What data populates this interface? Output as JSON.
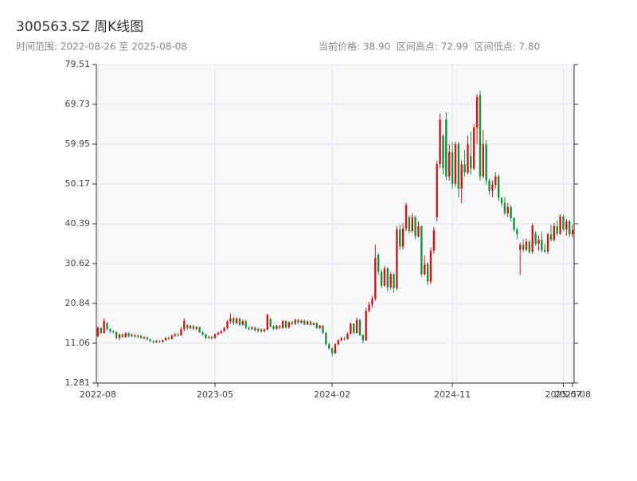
{
  "chart_data": {
    "type": "candlestick",
    "title": "300563.SZ 周K线图",
    "subtitle": "时间范围: 2022-08-26 至 2025-08-08",
    "annotation": "当前价格: 38.90  区间高点: 72.99  区间低点: 7.80",
    "up_color": "#cc1818",
    "down_color": "#1a8f3c",
    "grid": true,
    "ylim": [
      1.281,
      79.51
    ],
    "yticks": [
      1.281,
      11.06,
      20.84,
      30.62,
      40.39,
      50.17,
      59.95,
      69.73,
      79.51
    ],
    "categories": [
      "2022-08",
      null,
      null,
      null,
      null,
      null,
      null,
      null,
      null,
      null,
      null,
      null,
      null,
      null,
      null,
      null,
      null,
      null,
      null,
      null,
      null,
      null,
      null,
      null,
      null,
      null,
      null,
      null,
      null,
      null,
      null,
      null,
      null,
      null,
      null,
      null,
      null,
      null,
      "2023-05",
      null,
      null,
      null,
      null,
      null,
      null,
      null,
      null,
      null,
      null,
      null,
      null,
      null,
      null,
      null,
      null,
      null,
      null,
      null,
      null,
      null,
      null,
      null,
      null,
      null,
      null,
      null,
      null,
      null,
      null,
      null,
      null,
      null,
      null,
      null,
      null,
      null,
      "2024-02",
      null,
      null,
      null,
      null,
      null,
      null,
      null,
      null,
      null,
      null,
      null,
      null,
      null,
      null,
      null,
      null,
      null,
      null,
      null,
      null,
      null,
      null,
      null,
      null,
      null,
      null,
      null,
      null,
      null,
      null,
      null,
      null,
      null,
      null,
      null,
      null,
      null,
      null,
      "2024-11",
      null,
      null,
      null,
      null,
      null,
      null,
      null,
      null,
      null,
      null,
      null,
      null,
      null,
      null,
      null,
      null,
      null,
      null,
      null,
      null,
      null,
      null,
      null,
      null,
      null,
      null,
      null,
      null,
      null,
      null,
      null,
      null,
      null,
      null,
      null,
      "2025-07",
      null,
      null,
      "2025-08"
    ],
    "open": [
      12.8,
      14.8,
      13.6,
      16.0,
      14.5,
      14.0,
      13.8,
      12.4,
      13.2,
      12.6,
      13.5,
      12.8,
      13.1,
      12.7,
      12.9,
      12.4,
      12.5,
      12.0,
      11.6,
      11.3,
      11.6,
      11.4,
      11.8,
      12.4,
      12.1,
      12.9,
      13.2,
      13.0,
      14.5,
      15.5,
      14.8,
      15.3,
      14.6,
      15.0,
      13.8,
      13.2,
      12.4,
      12.6,
      12.3,
      13.2,
      13.6,
      14.0,
      14.8,
      16.4,
      17.2,
      16.0,
      17.1,
      15.6,
      16.5,
      14.9,
      14.6,
      14.9,
      14.2,
      14.5,
      14.0,
      14.4,
      17.0,
      15.2,
      14.6,
      15.3,
      14.8,
      16.5,
      14.9,
      16.2,
      15.8,
      16.8,
      16.1,
      16.6,
      15.7,
      16.4,
      15.6,
      16.0,
      14.8,
      15.4,
      13.6,
      10.8,
      9.8,
      8.6,
      10.8,
      11.8,
      12.3,
      12.1,
      13.4,
      15.8,
      13.6,
      16.8,
      13.0,
      11.8,
      19.0,
      20.5,
      22.0,
      32.8,
      28.6,
      25.2,
      29.4,
      24.8,
      28.0,
      24.6,
      39.0,
      34.8,
      39.2,
      42.0,
      38.6,
      42.0,
      37.4,
      39.8,
      28.0,
      30.5,
      26.2,
      33.8,
      42.0,
      55.0,
      62.0,
      66.0,
      52.0,
      58.0,
      50.2,
      60.0,
      49.0,
      55.0,
      53.0,
      57.0,
      54.0,
      64.0,
      72.0,
      52.0,
      60.0,
      51.0,
      48.5,
      50.0,
      52.0,
      46.8,
      45.5,
      43.0,
      44.5,
      41.8,
      39.0,
      34.0,
      35.2,
      34.0,
      36.0,
      33.5,
      38.0,
      35.5,
      36.5,
      34.0,
      33.6,
      37.8,
      36.4,
      39.8,
      38.0,
      42.2,
      39.0,
      41.0,
      37.8
    ],
    "close": [
      14.8,
      13.6,
      16.5,
      14.5,
      14.0,
      13.8,
      12.4,
      13.2,
      12.6,
      13.5,
      12.8,
      13.1,
      12.7,
      12.9,
      12.4,
      12.5,
      12.0,
      11.6,
      11.3,
      11.6,
      11.4,
      11.8,
      12.4,
      12.1,
      12.9,
      13.2,
      13.0,
      14.5,
      16.6,
      14.8,
      15.3,
      14.6,
      15.0,
      13.8,
      13.2,
      12.4,
      12.6,
      12.3,
      13.2,
      13.6,
      14.0,
      14.8,
      16.4,
      17.2,
      16.0,
      17.1,
      15.6,
      16.5,
      14.9,
      14.6,
      14.9,
      14.2,
      14.5,
      14.0,
      14.4,
      18.0,
      15.2,
      14.6,
      15.3,
      14.8,
      16.5,
      14.9,
      16.2,
      15.8,
      16.8,
      16.1,
      16.6,
      15.7,
      16.4,
      15.6,
      16.0,
      14.8,
      15.4,
      13.6,
      10.8,
      9.8,
      8.6,
      10.8,
      11.8,
      12.3,
      12.1,
      13.4,
      15.8,
      13.6,
      16.8,
      13.0,
      11.8,
      19.0,
      20.5,
      22.0,
      32.0,
      28.6,
      25.2,
      29.4,
      24.8,
      28.0,
      24.6,
      39.0,
      34.8,
      39.2,
      45.0,
      38.6,
      42.0,
      37.4,
      39.8,
      28.0,
      30.5,
      26.2,
      33.8,
      38.8,
      55.0,
      66.0,
      54.0,
      52.0,
      58.0,
      50.2,
      60.0,
      49.0,
      55.0,
      53.0,
      60.0,
      54.0,
      64.0,
      71.5,
      52.0,
      60.0,
      51.0,
      48.5,
      50.0,
      52.0,
      46.8,
      45.5,
      43.0,
      44.5,
      41.8,
      39.0,
      37.8,
      35.2,
      34.0,
      36.0,
      33.5,
      40.0,
      35.5,
      36.5,
      34.0,
      33.6,
      37.8,
      36.4,
      39.8,
      38.0,
      42.2,
      39.0,
      41.0,
      37.8,
      38.9
    ],
    "low": [
      12.5,
      13.2,
      13.4,
      14.2,
      13.6,
      13.4,
      12.0,
      11.8,
      12.3,
      12.4,
      12.5,
      12.6,
      12.4,
      12.3,
      12.1,
      12.0,
      11.7,
      11.3,
      11.0,
      11.1,
      11.2,
      11.2,
      11.6,
      11.9,
      12.0,
      12.6,
      12.7,
      12.9,
      14.0,
      14.3,
      14.5,
      14.3,
      14.2,
      13.6,
      12.9,
      12.0,
      12.1,
      12.0,
      12.2,
      13.0,
      13.3,
      13.8,
      14.5,
      15.8,
      15.6,
      15.7,
      15.2,
      15.4,
      14.6,
      14.2,
      14.3,
      13.9,
      13.7,
      13.6,
      13.7,
      14.2,
      14.9,
      14.3,
      14.4,
      14.5,
      14.6,
      14.6,
      14.7,
      15.4,
      15.6,
      15.8,
      15.9,
      15.4,
      15.5,
      15.3,
      15.4,
      14.6,
      14.5,
      13.3,
      10.5,
      9.5,
      7.8,
      8.4,
      10.5,
      11.5,
      11.7,
      11.9,
      13.2,
      13.3,
      13.4,
      12.8,
      11.0,
      11.6,
      18.6,
      19.8,
      21.5,
      27.8,
      24.6,
      24.9,
      23.8,
      24.2,
      23.5,
      24.0,
      34.0,
      34.1,
      38.6,
      38.0,
      38.2,
      36.6,
      37.0,
      27.4,
      27.6,
      25.4,
      25.6,
      33.0,
      41.0,
      54.0,
      52.5,
      51.2,
      51.0,
      49.0,
      49.5,
      46.8,
      45.5,
      52.0,
      52.5,
      52.5,
      53.5,
      60.0,
      51.0,
      51.5,
      50.0,
      47.5,
      47.0,
      49.0,
      46.0,
      44.6,
      42.5,
      42.0,
      41.0,
      38.5,
      36.6,
      27.8,
      33.4,
      33.6,
      33.0,
      33.0,
      35.0,
      33.8,
      33.4,
      33.2,
      33.0,
      36.0,
      36.0,
      37.4,
      37.6,
      38.6,
      37.5,
      37.2,
      37.0
    ],
    "high": [
      15.2,
      15.0,
      17.2,
      16.2,
      14.8,
      14.3,
      14.0,
      13.5,
      13.4,
      13.8,
      13.7,
      13.4,
      13.3,
      13.2,
      13.1,
      12.8,
      12.7,
      12.2,
      11.8,
      11.8,
      11.8,
      12.0,
      12.6,
      12.7,
      13.2,
      13.5,
      13.6,
      15.0,
      17.2,
      15.8,
      15.6,
      15.5,
      15.3,
      15.1,
      14.0,
      13.4,
      12.9,
      12.8,
      13.5,
      13.9,
      14.3,
      15.1,
      16.8,
      18.3,
      17.6,
      17.5,
      17.3,
      16.9,
      16.7,
      15.2,
      15.2,
      15.1,
      14.8,
      14.7,
      14.7,
      18.3,
      17.3,
      15.5,
      15.6,
      15.6,
      16.8,
      16.7,
      16.5,
      16.6,
      17.1,
      17.0,
      16.9,
      16.8,
      16.7,
      16.6,
      16.2,
      16.1,
      15.6,
      15.5,
      13.8,
      11.2,
      10.0,
      11.1,
      12.0,
      12.6,
      12.6,
      13.7,
      16.2,
      16.0,
      17.4,
      17.0,
      13.3,
      19.8,
      21.2,
      22.6,
      35.3,
      33.2,
      29.2,
      30.0,
      29.8,
      28.6,
      28.3,
      39.8,
      40.2,
      40.5,
      45.6,
      42.5,
      43.0,
      42.4,
      41.0,
      40.0,
      32.6,
      31.0,
      34.6,
      39.6,
      55.8,
      67.4,
      62.5,
      67.8,
      60.0,
      60.5,
      60.6,
      60.5,
      56.0,
      58.5,
      62.0,
      63.0,
      64.8,
      72.3,
      72.99,
      63.5,
      61.0,
      51.5,
      51.0,
      53.0,
      52.5,
      47.0,
      47.0,
      45.5,
      45.0,
      42.0,
      39.5,
      35.8,
      36.6,
      36.8,
      36.4,
      40.5,
      38.6,
      37.5,
      38.5,
      35.6,
      38.2,
      40.2,
      40.6,
      41.2,
      42.8,
      42.6,
      41.6,
      41.4,
      40.2
    ]
  }
}
